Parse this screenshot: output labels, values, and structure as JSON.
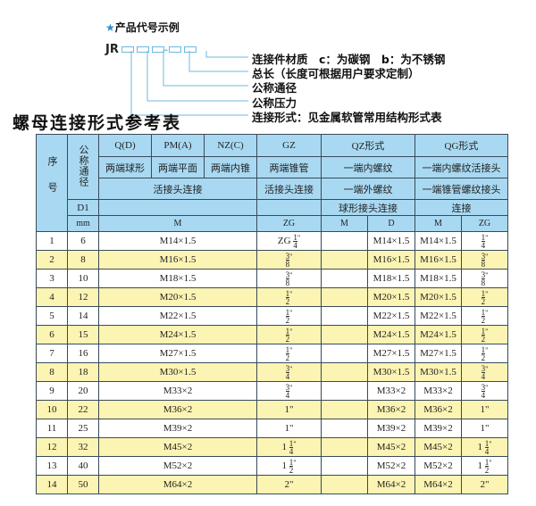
{
  "example": {
    "heading": "产品代号示例",
    "star_color": "#2a8fd8",
    "prefix": "JR",
    "labels": [
      "连接件材质　c：为碳钢　b：为不锈钢",
      "总长（长度可根据用户要求定制）",
      "公称通径",
      "公称压力",
      "连接形式：见金属软管常用结构形式表"
    ]
  },
  "title": "螺母连接形式参考表",
  "table": {
    "h_seq": "序号",
    "h_dn": "公称通径",
    "h_q": "Q(D)",
    "h_pm": "PM(A)",
    "h_nz": "NZ(C)",
    "h_gz": "GZ",
    "h_qz": "QZ形式",
    "h_qg": "QG形式",
    "r2_q": "两端球形",
    "r2_pm": "两端平面",
    "r2_nz": "两端内锥",
    "r2_gz": "两端锥管",
    "r2_qz": "一端内螺纹",
    "r2_qg": "一端内螺纹活接头",
    "r3_hj": "活接头连接",
    "r3_gz": "活接头连接",
    "r3_qz": "一端外螺纹",
    "r3_qg": "一端锥管螺纹接头",
    "r4_d1": "D1",
    "r4_qz": "球形接头连接",
    "r4_qg": "连接",
    "r5_mm": "mm",
    "r5_m": "M",
    "r5_zg": "ZG",
    "r5_qzm": "M",
    "r5_qzd": "D",
    "r5_qgm": "M",
    "r5_qgzg": "ZG",
    "header_color": "#a9d9f2",
    "stripe_color": "#fcf4b3",
    "rows": [
      {
        "n": "1",
        "dn": "6",
        "m": "M14×1.5",
        "zg": {
          "pre": "ZG ",
          "whole": "",
          "num": "1",
          "den": "4",
          "suf": "\""
        },
        "qzd": "M14×1.5",
        "qgm": "M14×1.5",
        "qgzg": {
          "pre": "",
          "whole": "",
          "num": "1",
          "den": "4",
          "suf": "\""
        }
      },
      {
        "n": "2",
        "dn": "8",
        "m": "M16×1.5",
        "zg": {
          "pre": "",
          "whole": "",
          "num": "3",
          "den": "8",
          "suf": "\""
        },
        "qzd": "M16×1.5",
        "qgm": "M16×1.5",
        "qgzg": {
          "pre": "",
          "whole": "",
          "num": "3",
          "den": "8",
          "suf": "\""
        }
      },
      {
        "n": "3",
        "dn": "10",
        "m": "M18×1.5",
        "zg": {
          "pre": "",
          "whole": "",
          "num": "3",
          "den": "8",
          "suf": "\""
        },
        "qzd": "M18×1.5",
        "qgm": "M18×1.5",
        "qgzg": {
          "pre": "",
          "whole": "",
          "num": "3",
          "den": "8",
          "suf": "\""
        }
      },
      {
        "n": "4",
        "dn": "12",
        "m": "M20×1.5",
        "zg": {
          "pre": "",
          "whole": "",
          "num": "1",
          "den": "2",
          "suf": "\""
        },
        "qzd": "M20×1.5",
        "qgm": "M20×1.5",
        "qgzg": {
          "pre": "",
          "whole": "",
          "num": "1",
          "den": "2",
          "suf": "\""
        }
      },
      {
        "n": "5",
        "dn": "14",
        "m": "M22×1.5",
        "zg": {
          "pre": "",
          "whole": "",
          "num": "1",
          "den": "2",
          "suf": "\""
        },
        "qzd": "M22×1.5",
        "qgm": "M22×1.5",
        "qgzg": {
          "pre": "",
          "whole": "",
          "num": "1",
          "den": "2",
          "suf": "\""
        }
      },
      {
        "n": "6",
        "dn": "15",
        "m": "M24×1.5",
        "zg": {
          "pre": "",
          "whole": "",
          "num": "1",
          "den": "2",
          "suf": "\""
        },
        "qzd": "M24×1.5",
        "qgm": "M24×1.5",
        "qgzg": {
          "pre": "",
          "whole": "",
          "num": "1",
          "den": "2",
          "suf": "\""
        }
      },
      {
        "n": "7",
        "dn": "16",
        "m": "M27×1.5",
        "zg": {
          "pre": "",
          "whole": "",
          "num": "1",
          "den": "2",
          "suf": "\""
        },
        "qzd": "M27×1.5",
        "qgm": "M27×1.5",
        "qgzg": {
          "pre": "",
          "whole": "",
          "num": "1",
          "den": "2",
          "suf": "\""
        }
      },
      {
        "n": "8",
        "dn": "18",
        "m": "M30×1.5",
        "zg": {
          "pre": "",
          "whole": "",
          "num": "3",
          "den": "4",
          "suf": "\""
        },
        "qzd": "M30×1.5",
        "qgm": "M30×1.5",
        "qgzg": {
          "pre": "",
          "whole": "",
          "num": "3",
          "den": "4",
          "suf": "\""
        }
      },
      {
        "n": "9",
        "dn": "20",
        "m": "M33×2",
        "zg": {
          "pre": "",
          "whole": "",
          "num": "3",
          "den": "4",
          "suf": "\""
        },
        "qzd": "M33×2",
        "qgm": "M33×2",
        "qgzg": {
          "pre": "",
          "whole": "",
          "num": "3",
          "den": "4",
          "suf": "\""
        }
      },
      {
        "n": "10",
        "dn": "22",
        "m": "M36×2",
        "zg": {
          "pre": "",
          "whole": "1\"",
          "num": "",
          "den": "",
          "suf": ""
        },
        "qzd": "M36×2",
        "qgm": "M36×2",
        "qgzg": {
          "pre": "",
          "whole": "1\"",
          "num": "",
          "den": "",
          "suf": ""
        }
      },
      {
        "n": "11",
        "dn": "25",
        "m": "M39×2",
        "zg": {
          "pre": "",
          "whole": "1\"",
          "num": "",
          "den": "",
          "suf": ""
        },
        "qzd": "M39×2",
        "qgm": "M39×2",
        "qgzg": {
          "pre": "",
          "whole": "1\"",
          "num": "",
          "den": "",
          "suf": ""
        }
      },
      {
        "n": "12",
        "dn": "32",
        "m": "M45×2",
        "zg": {
          "pre": "",
          "whole": "1 ",
          "num": "1",
          "den": "4",
          "suf": "\""
        },
        "qzd": "M45×2",
        "qgm": "M45×2",
        "qgzg": {
          "pre": "",
          "whole": "1 ",
          "num": "1",
          "den": "4",
          "suf": "\""
        }
      },
      {
        "n": "13",
        "dn": "40",
        "m": "M52×2",
        "zg": {
          "pre": "",
          "whole": "1 ",
          "num": "1",
          "den": "2",
          "suf": "\""
        },
        "qzd": "M52×2",
        "qgm": "M52×2",
        "qgzg": {
          "pre": "",
          "whole": "1 ",
          "num": "1",
          "den": "2",
          "suf": "\""
        }
      },
      {
        "n": "14",
        "dn": "50",
        "m": "M64×2",
        "zg": {
          "pre": "",
          "whole": "2\"",
          "num": "",
          "den": "",
          "suf": ""
        },
        "qzd": "M64×2",
        "qgm": "M64×2",
        "qgzg": {
          "pre": "",
          "whole": "2\"",
          "num": "",
          "den": "",
          "suf": ""
        }
      }
    ]
  }
}
